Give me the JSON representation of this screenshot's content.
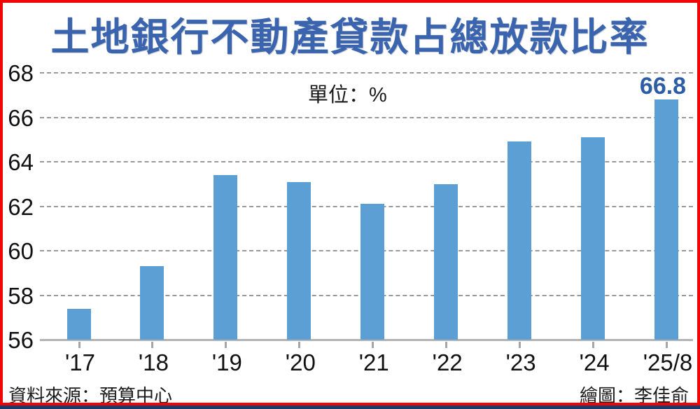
{
  "page": {
    "title": "土地銀行不動產貸款占總放款比率",
    "source_note": "資料來源：預算中心",
    "credit_note": "繪圖：李佳俞"
  },
  "colors": {
    "title_blue": "#3a64ae",
    "bar_blue": "#5c9fd5",
    "annotation_blue": "#2e5da8",
    "frame_red": "#f00606",
    "bottom_strip_navy": "#1e3a67",
    "gridline_gray": "#999999",
    "axis_gray": "#b3b3b3",
    "text_black": "#111111"
  },
  "chart_data": {
    "type": "bar",
    "title": "土地銀行不動產貸款占總放款比率",
    "unit_label": "單位：%",
    "categories": [
      "'17",
      "'18",
      "'19",
      "'20",
      "'21",
      "'22",
      "'23",
      "'24",
      "'25/8"
    ],
    "values": [
      57.4,
      59.3,
      63.4,
      63.1,
      62.1,
      63.0,
      64.9,
      65.1,
      66.8
    ],
    "xlabel": "",
    "ylabel": "",
    "ylim": [
      56,
      68
    ],
    "yticks": [
      56,
      58,
      60,
      62,
      64,
      66,
      68
    ],
    "grid": "horizontal-dashed",
    "legend": "none",
    "annotation": {
      "text": "66.8",
      "target_category": "'25/8"
    }
  }
}
